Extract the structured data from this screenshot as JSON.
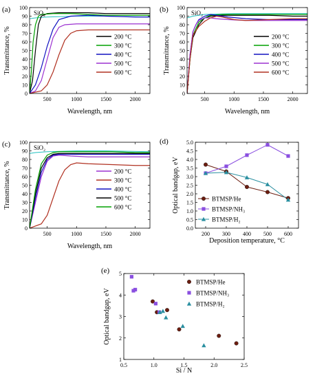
{
  "chart_data": [
    {
      "panel": "(a)",
      "type": "line",
      "annotation": "SiO₂",
      "xlabel": "Wavelength, nm",
      "ylabel": "Transmittance, %",
      "xlim": [
        200,
        2250
      ],
      "ylim": [
        0,
        100
      ],
      "xticks": [
        500,
        1000,
        1500,
        2000
      ],
      "yticks": [
        0,
        10,
        20,
        30,
        40,
        50,
        60,
        70,
        80,
        90,
        100
      ],
      "reference": {
        "name": "SiO₂",
        "color": "#20c0c0",
        "x": [
          200,
          300,
          500,
          1000,
          1500,
          2250
        ],
        "y": [
          87,
          88,
          89,
          90,
          90,
          89
        ]
      },
      "legend": [
        "200 °C",
        "300 °C",
        "400 °C",
        "500 °C",
        "600 °C"
      ],
      "legend_position": "right-center",
      "series": [
        {
          "name": "200 °C",
          "color": "#000000",
          "x": [
            200,
            250,
            300,
            350,
            400,
            500,
            700,
            900,
            1200,
            1500,
            2000,
            2250
          ],
          "y": [
            0,
            15,
            50,
            80,
            90,
            93,
            94,
            94,
            94,
            93,
            93,
            93
          ]
        },
        {
          "name": "300 °C",
          "color": "#00a000",
          "x": [
            200,
            230,
            260,
            300,
            350,
            400,
            600,
            900,
            1200,
            1500,
            2000,
            2250
          ],
          "y": [
            0,
            25,
            60,
            80,
            90,
            92,
            93,
            93,
            92,
            91,
            91,
            91
          ]
        },
        {
          "name": "400 °C",
          "color": "#1010c0",
          "x": [
            200,
            300,
            400,
            500,
            600,
            700,
            900,
            1200,
            1500,
            2000,
            2250
          ],
          "y": [
            0,
            10,
            30,
            55,
            75,
            86,
            90,
            91,
            90,
            89,
            89
          ]
        },
        {
          "name": "500 °C",
          "color": "#9b30d0",
          "x": [
            200,
            300,
            400,
            500,
            600,
            700,
            800,
            1000,
            1500,
            2000,
            2250
          ],
          "y": [
            0,
            3,
            15,
            40,
            65,
            77,
            80,
            81,
            81,
            81,
            81
          ]
        },
        {
          "name": "600 °C",
          "color": "#b03020",
          "x": [
            200,
            400,
            500,
            600,
            700,
            800,
            900,
            1000,
            1200,
            1500,
            2000,
            2250
          ],
          "y": [
            0,
            3,
            10,
            25,
            45,
            62,
            70,
            73,
            74,
            74,
            74,
            74
          ]
        }
      ]
    },
    {
      "panel": "(b)",
      "type": "line",
      "annotation": "SiO₂",
      "xlabel": "Wavelength, nm",
      "ylabel": "Transmittance, %",
      "xlim": [
        200,
        2250
      ],
      "ylim": [
        0,
        100
      ],
      "xticks": [
        500,
        1000,
        1500,
        2000
      ],
      "yticks": [
        0,
        10,
        20,
        30,
        40,
        50,
        60,
        70,
        80,
        90,
        100
      ],
      "reference": {
        "name": "SiO₂",
        "color": "#20c0c0",
        "x": [
          200,
          300,
          500,
          1000,
          1500,
          2250
        ],
        "y": [
          88,
          90,
          92,
          93,
          93,
          93
        ]
      },
      "legend": [
        "200 °C",
        "300 °C",
        "400 °C",
        "500 °C",
        "600 °C"
      ],
      "legend_position": "right-center",
      "series": [
        {
          "name": "200 °C",
          "color": "#000000",
          "x": [
            200,
            250,
            300,
            400,
            500,
            600,
            800,
            1200,
            1600,
            2000,
            2250
          ],
          "y": [
            0,
            40,
            65,
            80,
            88,
            90,
            91,
            91,
            91,
            90,
            90
          ]
        },
        {
          "name": "300 °C",
          "color": "#00a000",
          "x": [
            200,
            250,
            300,
            400,
            500,
            600,
            800,
            1200,
            1600,
            2000,
            2250
          ],
          "y": [
            0,
            40,
            68,
            83,
            88,
            91,
            92,
            92,
            92,
            92,
            92
          ]
        },
        {
          "name": "400 °C",
          "color": "#1010c0",
          "x": [
            200,
            250,
            300,
            350,
            400,
            500,
            600,
            700,
            900,
            1200,
            1600,
            2000,
            2250
          ],
          "y": [
            0,
            45,
            72,
            80,
            86,
            90,
            92,
            91,
            89,
            87,
            86,
            86,
            86
          ]
        },
        {
          "name": "500 °C",
          "color": "#9b30d0",
          "x": [
            200,
            250,
            300,
            350,
            400,
            500,
            600,
            700,
            900,
            1200,
            1600,
            2000,
            2250
          ],
          "y": [
            0,
            45,
            72,
            80,
            85,
            88,
            88,
            87,
            86,
            85,
            85,
            85,
            85
          ]
        },
        {
          "name": "600 °C",
          "color": "#b03020",
          "x": [
            200,
            250,
            300,
            400,
            500,
            600,
            700,
            800,
            1000,
            1200,
            1600,
            2000,
            2250
          ],
          "y": [
            0,
            40,
            68,
            78,
            84,
            88,
            90,
            89,
            86,
            85,
            86,
            87,
            87
          ]
        }
      ]
    },
    {
      "panel": "(c)",
      "type": "line",
      "annotation": "SiO₂",
      "xlabel": "Wavelength, nm",
      "ylabel": "Transmittance, %",
      "xlim": [
        200,
        2250
      ],
      "ylim": [
        0,
        100
      ],
      "xticks": [
        500,
        1000,
        1500,
        2000
      ],
      "yticks": [
        0,
        10,
        20,
        30,
        40,
        50,
        60,
        70,
        80,
        90,
        100
      ],
      "reference": {
        "name": "SiO₂",
        "color": "#20c0c0",
        "x": [
          200,
          300,
          500,
          1000,
          1500,
          2250
        ],
        "y": [
          87,
          88,
          89,
          90,
          90,
          89
        ]
      },
      "legend": [
        "200 °C",
        "300 °C",
        "400 °C",
        "500 °C",
        "600 °C"
      ],
      "legend_position": "right-center",
      "series": [
        {
          "name": "200 °C",
          "color": "#9b30d0",
          "x": [
            200,
            300,
            400,
            500,
            600,
            700,
            900,
            1200,
            1600,
            2000,
            2250
          ],
          "y": [
            0,
            30,
            60,
            78,
            84,
            85,
            84,
            83,
            83,
            83,
            83
          ]
        },
        {
          "name": "300 °C",
          "color": "#b03020",
          "x": [
            200,
            400,
            500,
            600,
            700,
            800,
            900,
            1000,
            1200,
            1600,
            2000,
            2250
          ],
          "y": [
            0,
            5,
            15,
            35,
            55,
            68,
            74,
            76,
            75,
            74,
            73,
            73
          ]
        },
        {
          "name": "400 °C",
          "color": "#1010c0",
          "x": [
            200,
            300,
            400,
            500,
            600,
            700,
            900,
            1200,
            1600,
            2000,
            2250
          ],
          "y": [
            0,
            35,
            65,
            80,
            85,
            86,
            86,
            86,
            86,
            86,
            86
          ]
        },
        {
          "name": "500 °C",
          "color": "#000000",
          "x": [
            200,
            300,
            400,
            500,
            600,
            700,
            900,
            1200,
            1600,
            2000,
            2250
          ],
          "y": [
            0,
            40,
            70,
            82,
            86,
            87,
            87,
            87,
            87,
            87,
            87
          ]
        },
        {
          "name": "600 °C",
          "color": "#00a000",
          "x": [
            200,
            300,
            400,
            500,
            600,
            700,
            900,
            1200,
            1600,
            2000,
            2250
          ],
          "y": [
            0,
            45,
            75,
            85,
            88,
            89,
            89,
            89,
            89,
            88,
            88
          ]
        }
      ]
    },
    {
      "panel": "(d)",
      "type": "line",
      "xlabel": "Deposition temperature, °C",
      "ylabel": "Optical bandgap, eV",
      "xlim": [
        150,
        650
      ],
      "ylim": [
        0,
        5.0
      ],
      "xticks": [
        200,
        300,
        400,
        500,
        600
      ],
      "yticks": [
        0.0,
        0.5,
        1.0,
        1.5,
        2.0,
        2.5,
        3.0,
        3.5,
        4.0,
        4.5,
        5.0
      ],
      "legend_position": "left-center",
      "x": [
        200,
        300,
        400,
        500,
        600
      ],
      "series": [
        {
          "name": "BTMSP/He",
          "color": "#6b1d10",
          "marker": "circle",
          "values": [
            3.7,
            3.3,
            2.4,
            2.1,
            1.75
          ]
        },
        {
          "name": "BTMSP/NH₃",
          "color": "#8a4fe0",
          "marker": "square",
          "values": [
            3.2,
            3.6,
            4.25,
            4.85,
            4.2
          ]
        },
        {
          "name": "BTMSP/H₂",
          "color": "#2a8fa0",
          "marker": "triangle",
          "values": [
            3.2,
            3.25,
            2.95,
            2.55,
            1.65
          ]
        }
      ]
    },
    {
      "panel": "(e)",
      "type": "scatter",
      "xlabel": "Si / N",
      "ylabel": "Optical bandgap, eV",
      "xlim": [
        0.5,
        2.5
      ],
      "ylim": [
        1.0,
        5.0
      ],
      "xticks": [
        0.5,
        1.0,
        1.5,
        2.0,
        2.5
      ],
      "yticks": [
        1,
        2,
        3,
        4,
        5
      ],
      "legend_position": "top-right",
      "series": [
        {
          "name": "BTMSP/He",
          "color": "#6b1d10",
          "marker": "circle",
          "x": [
            0.98,
            1.05,
            1.22,
            1.42,
            2.08,
            2.37
          ],
          "y": [
            3.7,
            3.2,
            3.3,
            2.4,
            2.1,
            1.75
          ]
        },
        {
          "name": "BTMSP/NH₃",
          "color": "#8a4fe0",
          "marker": "square",
          "x": [
            0.63,
            0.66,
            0.69,
            1.03,
            1.09
          ],
          "y": [
            4.85,
            4.2,
            4.25,
            3.6,
            3.2
          ]
        },
        {
          "name": "BTMSP/H₂",
          "color": "#2a8fa0",
          "marker": "triangle",
          "x": [
            1.1,
            1.15,
            1.2,
            1.48,
            1.83
          ],
          "y": [
            3.2,
            3.25,
            2.95,
            2.55,
            1.65
          ]
        }
      ]
    }
  ]
}
